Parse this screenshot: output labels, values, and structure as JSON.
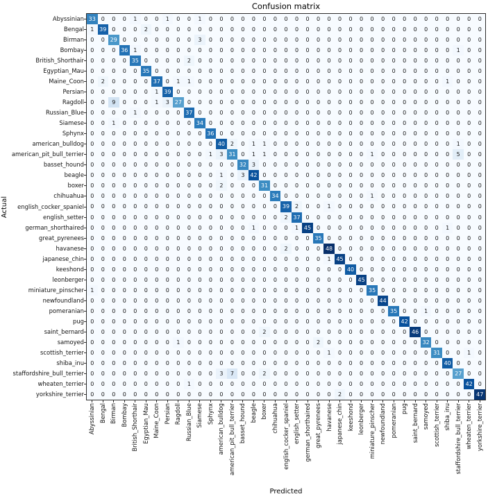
{
  "chart_data": {
    "type": "heatmap",
    "title": "Confusion matrix",
    "xlabel": "Predicted",
    "ylabel": "Actual",
    "colormap": "Blues",
    "colormap_min_hex": "#f7fbff",
    "colormap_max_hex": "#08306b",
    "value_range": [
      0,
      48
    ],
    "text_color_threshold": 24,
    "x_tick_label_rotation_deg": 90,
    "grid": false,
    "legend": "none",
    "classes": [
      "Abyssinian",
      "Bengal",
      "Birman",
      "Bombay",
      "British_Shorthair",
      "Egyptian_Mau",
      "Maine_Coon",
      "Persian",
      "Ragdoll",
      "Russian_Blue",
      "Siamese",
      "Sphynx",
      "american_bulldog",
      "american_pit_bull_terrier",
      "basset_hound",
      "beagle",
      "boxer",
      "chihuahua",
      "english_cocker_spaniel",
      "english_setter",
      "german_shorthaired",
      "great_pyrenees",
      "havanese",
      "japanese_chin",
      "keeshond",
      "leonberger",
      "miniature_pinscher",
      "newfoundland",
      "pomeranian",
      "pug",
      "saint_bernard",
      "samoyed",
      "scottish_terrier",
      "shiba_inu",
      "staffordshire_bull_terrier",
      "wheaten_terrier",
      "yorkshire_terrier"
    ],
    "matrix": [
      [
        33,
        0,
        0,
        0,
        1,
        0,
        0,
        1,
        0,
        0,
        1,
        0,
        0,
        0,
        0,
        0,
        0,
        0,
        0,
        0,
        0,
        0,
        0,
        0,
        0,
        0,
        0,
        0,
        0,
        0,
        0,
        0,
        0,
        0,
        0,
        0,
        0
      ],
      [
        1,
        39,
        0,
        0,
        0,
        2,
        0,
        0,
        0,
        0,
        0,
        0,
        0,
        0,
        0,
        0,
        0,
        0,
        0,
        0,
        0,
        0,
        0,
        0,
        0,
        0,
        0,
        0,
        0,
        0,
        0,
        0,
        0,
        0,
        0,
        0,
        0
      ],
      [
        0,
        0,
        29,
        0,
        0,
        0,
        0,
        0,
        0,
        0,
        3,
        0,
        0,
        0,
        0,
        0,
        0,
        0,
        0,
        0,
        0,
        0,
        0,
        0,
        0,
        0,
        0,
        0,
        0,
        0,
        0,
        0,
        0,
        0,
        0,
        0,
        0
      ],
      [
        0,
        0,
        0,
        36,
        1,
        0,
        0,
        0,
        0,
        0,
        0,
        0,
        0,
        0,
        0,
        0,
        0,
        0,
        0,
        0,
        0,
        0,
        0,
        0,
        0,
        0,
        0,
        0,
        0,
        0,
        0,
        0,
        0,
        0,
        1,
        0,
        0
      ],
      [
        0,
        0,
        0,
        0,
        35,
        0,
        0,
        0,
        0,
        2,
        0,
        0,
        0,
        0,
        0,
        0,
        0,
        0,
        0,
        0,
        0,
        0,
        0,
        0,
        0,
        0,
        0,
        0,
        0,
        0,
        0,
        0,
        0,
        0,
        0,
        0,
        0
      ],
      [
        0,
        0,
        0,
        0,
        0,
        35,
        0,
        0,
        0,
        0,
        0,
        0,
        0,
        0,
        0,
        0,
        0,
        0,
        0,
        0,
        0,
        0,
        0,
        0,
        0,
        0,
        0,
        0,
        0,
        0,
        0,
        0,
        0,
        0,
        0,
        0,
        0
      ],
      [
        0,
        2,
        0,
        0,
        0,
        0,
        37,
        0,
        1,
        1,
        0,
        0,
        0,
        0,
        0,
        0,
        0,
        0,
        0,
        0,
        0,
        0,
        0,
        0,
        0,
        0,
        0,
        0,
        0,
        0,
        0,
        0,
        0,
        1,
        0,
        0,
        0
      ],
      [
        0,
        0,
        0,
        0,
        0,
        0,
        1,
        39,
        0,
        0,
        0,
        0,
        0,
        0,
        0,
        0,
        0,
        0,
        0,
        0,
        0,
        0,
        0,
        0,
        0,
        0,
        0,
        0,
        0,
        0,
        0,
        0,
        0,
        0,
        0,
        0,
        0
      ],
      [
        0,
        0,
        9,
        0,
        0,
        0,
        1,
        3,
        27,
        0,
        0,
        0,
        0,
        0,
        0,
        0,
        0,
        0,
        0,
        0,
        0,
        0,
        0,
        0,
        0,
        0,
        0,
        0,
        0,
        0,
        0,
        0,
        0,
        0,
        0,
        0,
        0
      ],
      [
        0,
        0,
        0,
        0,
        1,
        0,
        0,
        0,
        0,
        37,
        0,
        0,
        0,
        0,
        0,
        0,
        0,
        0,
        0,
        0,
        0,
        0,
        0,
        0,
        0,
        0,
        0,
        0,
        0,
        0,
        0,
        0,
        0,
        0,
        0,
        0,
        0
      ],
      [
        0,
        0,
        1,
        0,
        0,
        0,
        0,
        0,
        0,
        0,
        34,
        0,
        0,
        0,
        0,
        0,
        0,
        0,
        0,
        0,
        0,
        0,
        0,
        0,
        0,
        0,
        0,
        0,
        0,
        0,
        0,
        0,
        0,
        0,
        0,
        0,
        0
      ],
      [
        0,
        0,
        0,
        0,
        0,
        0,
        0,
        0,
        0,
        0,
        0,
        36,
        0,
        0,
        0,
        0,
        0,
        0,
        0,
        0,
        0,
        0,
        0,
        0,
        0,
        0,
        0,
        0,
        0,
        0,
        0,
        0,
        0,
        0,
        0,
        0,
        0
      ],
      [
        0,
        0,
        0,
        0,
        0,
        0,
        0,
        0,
        0,
        0,
        0,
        0,
        40,
        2,
        0,
        1,
        1,
        0,
        0,
        0,
        0,
        0,
        0,
        0,
        0,
        0,
        0,
        0,
        0,
        0,
        0,
        0,
        0,
        0,
        1,
        0,
        0
      ],
      [
        0,
        0,
        0,
        0,
        0,
        0,
        0,
        0,
        0,
        0,
        0,
        1,
        3,
        31,
        0,
        1,
        1,
        0,
        0,
        0,
        0,
        0,
        0,
        0,
        0,
        0,
        1,
        0,
        0,
        0,
        0,
        0,
        0,
        0,
        5,
        0,
        0
      ],
      [
        0,
        0,
        0,
        0,
        0,
        0,
        0,
        0,
        0,
        0,
        0,
        0,
        0,
        0,
        32,
        3,
        0,
        0,
        0,
        0,
        0,
        0,
        0,
        0,
        0,
        0,
        0,
        0,
        0,
        0,
        0,
        0,
        0,
        0,
        0,
        0,
        0
      ],
      [
        0,
        0,
        0,
        0,
        0,
        0,
        0,
        0,
        0,
        0,
        0,
        0,
        1,
        0,
        3,
        42,
        0,
        0,
        0,
        0,
        0,
        0,
        0,
        0,
        0,
        0,
        0,
        0,
        0,
        0,
        0,
        0,
        0,
        0,
        0,
        0,
        0
      ],
      [
        0,
        0,
        0,
        0,
        0,
        0,
        0,
        0,
        0,
        0,
        0,
        0,
        2,
        0,
        0,
        0,
        31,
        0,
        0,
        0,
        0,
        0,
        0,
        0,
        0,
        0,
        0,
        0,
        0,
        0,
        0,
        0,
        0,
        0,
        0,
        0,
        0
      ],
      [
        0,
        0,
        0,
        0,
        0,
        0,
        0,
        0,
        0,
        0,
        0,
        0,
        0,
        0,
        0,
        0,
        0,
        34,
        0,
        0,
        0,
        0,
        0,
        0,
        0,
        0,
        1,
        0,
        0,
        0,
        0,
        0,
        0,
        0,
        0,
        0,
        0
      ],
      [
        0,
        0,
        0,
        0,
        0,
        0,
        0,
        0,
        0,
        0,
        0,
        0,
        0,
        0,
        0,
        0,
        0,
        0,
        39,
        2,
        0,
        0,
        1,
        0,
        0,
        0,
        0,
        0,
        0,
        0,
        0,
        0,
        0,
        0,
        0,
        0,
        0
      ],
      [
        0,
        0,
        0,
        0,
        0,
        0,
        0,
        0,
        0,
        0,
        0,
        0,
        0,
        0,
        0,
        0,
        0,
        0,
        2,
        37,
        0,
        0,
        0,
        0,
        0,
        0,
        0,
        0,
        0,
        0,
        0,
        0,
        0,
        0,
        0,
        0,
        0
      ],
      [
        0,
        0,
        0,
        0,
        0,
        0,
        0,
        0,
        0,
        0,
        0,
        0,
        0,
        0,
        0,
        1,
        0,
        0,
        0,
        1,
        45,
        0,
        0,
        0,
        0,
        0,
        0,
        0,
        0,
        0,
        0,
        0,
        0,
        1,
        0,
        0,
        0
      ],
      [
        0,
        0,
        0,
        0,
        0,
        0,
        0,
        0,
        0,
        0,
        0,
        0,
        0,
        0,
        0,
        0,
        0,
        0,
        0,
        0,
        0,
        35,
        0,
        0,
        0,
        0,
        0,
        0,
        0,
        0,
        0,
        0,
        0,
        0,
        0,
        0,
        0
      ],
      [
        0,
        0,
        0,
        0,
        0,
        0,
        0,
        0,
        0,
        0,
        0,
        0,
        0,
        0,
        0,
        0,
        0,
        0,
        2,
        0,
        0,
        0,
        48,
        0,
        0,
        0,
        0,
        0,
        0,
        0,
        0,
        0,
        0,
        0,
        0,
        0,
        0
      ],
      [
        0,
        0,
        0,
        0,
        0,
        0,
        0,
        0,
        0,
        0,
        0,
        0,
        0,
        0,
        0,
        0,
        0,
        0,
        0,
        0,
        0,
        0,
        1,
        45,
        0,
        0,
        0,
        0,
        0,
        0,
        0,
        0,
        0,
        0,
        0,
        0,
        0
      ],
      [
        0,
        0,
        0,
        0,
        0,
        0,
        0,
        0,
        0,
        0,
        0,
        0,
        0,
        0,
        0,
        0,
        0,
        0,
        0,
        0,
        0,
        0,
        0,
        0,
        40,
        0,
        0,
        0,
        0,
        0,
        0,
        0,
        0,
        0,
        0,
        0,
        0
      ],
      [
        0,
        0,
        0,
        0,
        0,
        0,
        0,
        0,
        0,
        0,
        0,
        0,
        0,
        0,
        0,
        0,
        0,
        0,
        0,
        0,
        0,
        0,
        0,
        0,
        0,
        45,
        0,
        0,
        0,
        0,
        0,
        0,
        0,
        0,
        0,
        0,
        0
      ],
      [
        1,
        0,
        0,
        0,
        0,
        0,
        0,
        0,
        0,
        0,
        0,
        0,
        0,
        0,
        0,
        0,
        0,
        0,
        0,
        0,
        0,
        0,
        0,
        0,
        0,
        0,
        35,
        0,
        0,
        0,
        0,
        0,
        0,
        0,
        0,
        0,
        0
      ],
      [
        0,
        0,
        0,
        0,
        0,
        0,
        0,
        0,
        0,
        0,
        0,
        0,
        0,
        0,
        0,
        0,
        0,
        0,
        0,
        0,
        0,
        0,
        0,
        0,
        0,
        0,
        0,
        44,
        0,
        0,
        0,
        0,
        0,
        0,
        0,
        0,
        0
      ],
      [
        0,
        0,
        0,
        0,
        0,
        0,
        0,
        0,
        0,
        0,
        0,
        0,
        0,
        0,
        0,
        0,
        0,
        0,
        0,
        0,
        0,
        0,
        0,
        0,
        0,
        0,
        0,
        0,
        35,
        0,
        0,
        1,
        0,
        0,
        0,
        0,
        0
      ],
      [
        0,
        0,
        0,
        0,
        0,
        0,
        0,
        0,
        0,
        0,
        0,
        0,
        0,
        0,
        0,
        0,
        0,
        0,
        0,
        0,
        0,
        0,
        0,
        0,
        0,
        0,
        0,
        0,
        0,
        42,
        0,
        0,
        0,
        0,
        0,
        0,
        0
      ],
      [
        0,
        0,
        0,
        0,
        0,
        0,
        0,
        0,
        0,
        0,
        0,
        0,
        0,
        0,
        0,
        0,
        2,
        0,
        0,
        0,
        0,
        0,
        0,
        0,
        0,
        0,
        0,
        0,
        0,
        0,
        46,
        0,
        0,
        0,
        0,
        0,
        0
      ],
      [
        0,
        0,
        0,
        0,
        0,
        0,
        0,
        0,
        1,
        0,
        0,
        0,
        0,
        0,
        0,
        0,
        0,
        0,
        0,
        0,
        0,
        2,
        0,
        0,
        0,
        0,
        0,
        0,
        0,
        0,
        0,
        32,
        0,
        0,
        0,
        0,
        0
      ],
      [
        0,
        0,
        0,
        0,
        0,
        0,
        0,
        0,
        0,
        0,
        0,
        0,
        0,
        0,
        0,
        0,
        0,
        0,
        0,
        0,
        0,
        0,
        1,
        0,
        0,
        0,
        0,
        0,
        0,
        0,
        0,
        0,
        31,
        0,
        0,
        1,
        0
      ],
      [
        0,
        0,
        0,
        0,
        0,
        0,
        0,
        0,
        0,
        0,
        0,
        0,
        0,
        0,
        0,
        0,
        0,
        0,
        0,
        0,
        0,
        0,
        0,
        0,
        0,
        0,
        0,
        0,
        0,
        0,
        0,
        0,
        0,
        40,
        0,
        0,
        0
      ],
      [
        0,
        0,
        0,
        0,
        0,
        0,
        0,
        0,
        0,
        0,
        0,
        0,
        3,
        7,
        0,
        0,
        2,
        0,
        0,
        0,
        0,
        0,
        0,
        0,
        0,
        0,
        0,
        0,
        0,
        0,
        0,
        0,
        0,
        0,
        27,
        0,
        0
      ],
      [
        0,
        0,
        0,
        0,
        0,
        0,
        0,
        0,
        0,
        1,
        0,
        0,
        0,
        0,
        0,
        0,
        0,
        0,
        0,
        0,
        0,
        0,
        0,
        0,
        0,
        0,
        0,
        0,
        0,
        0,
        0,
        0,
        0,
        0,
        0,
        42,
        0
      ],
      [
        0,
        0,
        0,
        0,
        0,
        0,
        0,
        0,
        0,
        0,
        0,
        0,
        0,
        0,
        0,
        0,
        0,
        0,
        0,
        0,
        0,
        0,
        0,
        2,
        0,
        0,
        0,
        0,
        0,
        0,
        0,
        0,
        0,
        0,
        0,
        0,
        47
      ]
    ]
  }
}
